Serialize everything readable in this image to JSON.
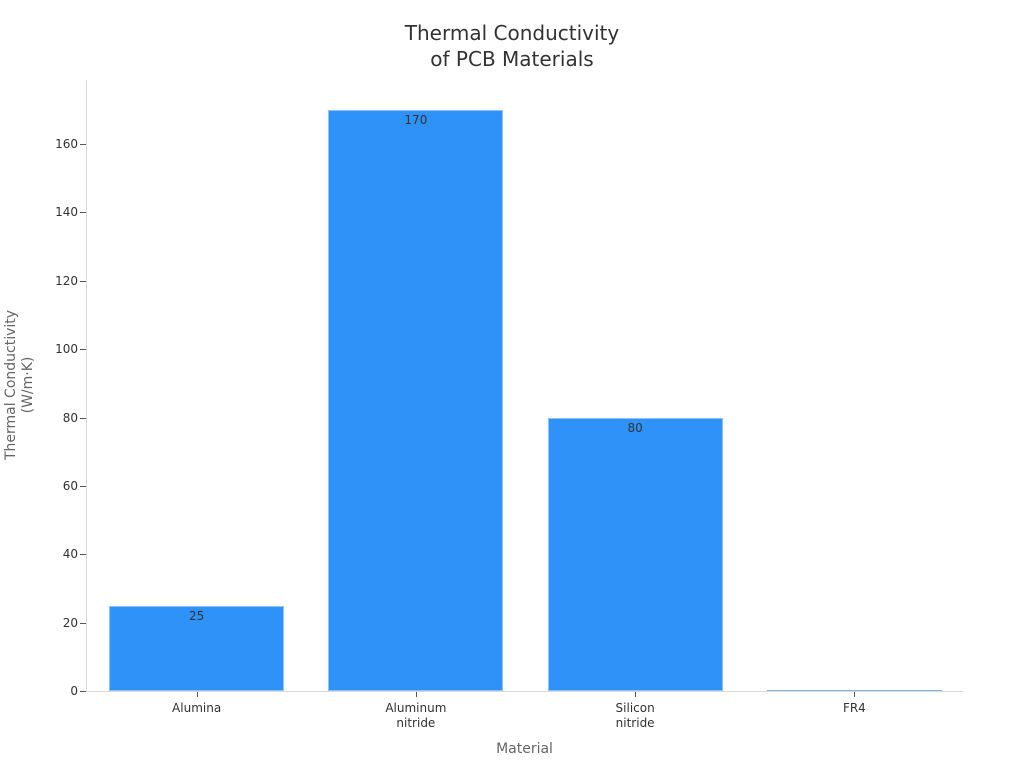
{
  "chart_data": {
    "type": "bar",
    "title": "Thermal Conductivity of PCB Materials",
    "title_lines": [
      "Thermal Conductivity",
      "of PCB Materials"
    ],
    "xlabel": "Material",
    "ylabel": "Thermal Conductivity (W/m·K)",
    "ylabel_lines": [
      "Thermal Conductivity",
      "(W/m·K)"
    ],
    "categories": [
      "Alumina",
      "Aluminum nitride",
      "Silicon nitride",
      "FR4"
    ],
    "category_lines": [
      [
        "Alumina"
      ],
      [
        "Aluminum",
        "nitride"
      ],
      [
        "Silicon",
        "nitride"
      ],
      [
        "FR4"
      ]
    ],
    "values": [
      25,
      170,
      80,
      0.3
    ],
    "data_labels": [
      "25",
      "170",
      "80",
      ""
    ],
    "yticks": [
      0,
      20,
      40,
      60,
      80,
      100,
      120,
      140,
      160
    ],
    "ylim": [
      0,
      179
    ],
    "grid": false,
    "legend": null,
    "bar_color": "#2e92f8"
  }
}
